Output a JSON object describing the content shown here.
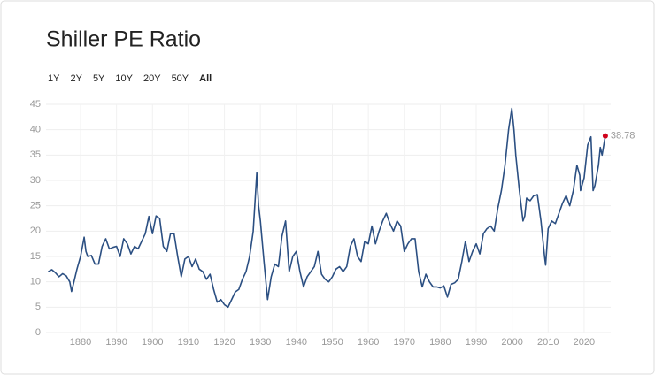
{
  "chart_data": {
    "type": "line",
    "title": "Shiller PE Ratio",
    "range_options": [
      "1Y",
      "2Y",
      "5Y",
      "10Y",
      "20Y",
      "50Y",
      "All"
    ],
    "range_selected": "All",
    "xlim": [
      1870.4,
      2027.4
    ],
    "ylim": [
      0,
      45
    ],
    "xticks": [
      1880,
      1890,
      1900,
      1910,
      1920,
      1930,
      1940,
      1950,
      1960,
      1970,
      1980,
      1990,
      2000,
      2010,
      2020
    ],
    "yticks": [
      0,
      5,
      10,
      15,
      20,
      25,
      30,
      35,
      40,
      45
    ],
    "grid": true,
    "end_marker_color": "#d0021b",
    "x": [
      1871,
      1872,
      1873,
      1874,
      1875,
      1876,
      1877,
      1877.5,
      1878,
      1879,
      1880,
      1881,
      1881.5,
      1882,
      1883,
      1884,
      1885,
      1886,
      1887,
      1888,
      1889,
      1890,
      1891,
      1892,
      1893,
      1894,
      1895,
      1896,
      1897,
      1898,
      1899,
      1900,
      1901,
      1902,
      1903,
      1904,
      1905,
      1906,
      1907,
      1908,
      1909,
      1910,
      1911,
      1912,
      1913,
      1914,
      1915,
      1916,
      1917,
      1918,
      1919,
      1920,
      1921,
      1922,
      1923,
      1924,
      1925,
      1926,
      1927,
      1928,
      1929,
      1929.5,
      1930,
      1931,
      1932,
      1933,
      1934,
      1935,
      1936,
      1937,
      1938,
      1939,
      1940,
      1941,
      1942,
      1943,
      1944,
      1945,
      1946,
      1947,
      1948,
      1949,
      1950,
      1951,
      1952,
      1953,
      1954,
      1955,
      1956,
      1957,
      1958,
      1959,
      1960,
      1961,
      1962,
      1963,
      1964,
      1965,
      1966,
      1967,
      1968,
      1969,
      1970,
      1971,
      1972,
      1973,
      1974,
      1975,
      1976,
      1977,
      1978,
      1979,
      1980,
      1981,
      1982,
      1983,
      1984,
      1985,
      1986,
      1987,
      1988,
      1989,
      1990,
      1991,
      1992,
      1993,
      1994,
      1995,
      1996,
      1997,
      1998,
      1999,
      1999.9,
      2000.5,
      2001,
      2002,
      2003,
      2003.5,
      2004,
      2005,
      2006,
      2007,
      2008,
      2009,
      2009.3,
      2010,
      2011,
      2012,
      2013,
      2014,
      2015,
      2016,
      2017,
      2018,
      2018.8,
      2019,
      2020,
      2021,
      2021.9,
      2022.5,
      2023,
      2024,
      2024.5,
      2025,
      2025.9
    ],
    "series": [
      {
        "color": "#2b4f82",
        "values": [
          12,
          12.4,
          11.8,
          11,
          11.6,
          11.2,
          10,
          8.1,
          9.5,
          12.5,
          15,
          18.8,
          16,
          15,
          15.2,
          13.5,
          13.5,
          17,
          18.5,
          16.5,
          16.8,
          17,
          15,
          18.5,
          17.5,
          15.5,
          17,
          16.5,
          18,
          19.5,
          22.9,
          19.5,
          23,
          22.5,
          17,
          16,
          19.5,
          19.5,
          15,
          11,
          14.5,
          15,
          13,
          14.5,
          12.5,
          12,
          10.5,
          11.5,
          8.5,
          6,
          6.5,
          5.5,
          5,
          6.5,
          8,
          8.5,
          10.5,
          12,
          15,
          20,
          31.5,
          25,
          22,
          14,
          6.5,
          11,
          13.5,
          13,
          19,
          22,
          12,
          15,
          16,
          12,
          9,
          11,
          12,
          13,
          16,
          11.5,
          10.5,
          10,
          11,
          12.5,
          13,
          12,
          13,
          17,
          18.5,
          15,
          14,
          18,
          17.5,
          21,
          17.5,
          20,
          22,
          23.5,
          21.5,
          20,
          22,
          21,
          16,
          17.5,
          18.5,
          18.5,
          12,
          9,
          11.5,
          10,
          9,
          9,
          8.8,
          9.2,
          7,
          9.5,
          9.8,
          10.5,
          14,
          18,
          14,
          16,
          17.5,
          15.5,
          19.5,
          20.5,
          21,
          20,
          24.5,
          28,
          33,
          40,
          44.2,
          40,
          35,
          28,
          22,
          23,
          26.5,
          26,
          27,
          27.2,
          22,
          15,
          13.3,
          20.5,
          22,
          21.5,
          23.5,
          25.5,
          27,
          25,
          28,
          33,
          31,
          28,
          30.5,
          37,
          38.6,
          28,
          29,
          33,
          36.5,
          35,
          38.78
        ]
      }
    ]
  }
}
